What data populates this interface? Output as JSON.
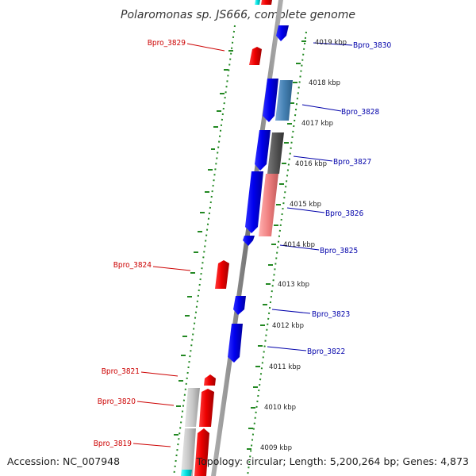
{
  "title": "Polaromonas sp. JS666, complete genome",
  "footer": {
    "accession": "Accession: NC_007948",
    "topology": "Topology: circular; Length: 5,200,264 bp; Genes: 4,873"
  },
  "scale_kbp": [
    "4019 kbp",
    "4018 kbp",
    "4017 kbp",
    "4016 kbp",
    "4015 kbp",
    "4014 kbp",
    "4013 kbp",
    "4012 kbp",
    "4011 kbp",
    "4010 kbp",
    "4009 kbp"
  ],
  "gene_labels": [
    {
      "id": "Bpro_3829",
      "color": "#cc0000"
    },
    {
      "id": "Bpro_3830",
      "color": "#0000aa"
    },
    {
      "id": "Bpro_3828",
      "color": "#0000aa"
    },
    {
      "id": "Bpro_3827",
      "color": "#0000aa"
    },
    {
      "id": "Bpro_3826",
      "color": "#0000aa"
    },
    {
      "id": "Bpro_3825",
      "color": "#0000aa"
    },
    {
      "id": "Bpro_3824",
      "color": "#cc0000"
    },
    {
      "id": "Bpro_3823",
      "color": "#0000aa"
    },
    {
      "id": "Bpro_3822",
      "color": "#0000aa"
    },
    {
      "id": "Bpro_3821",
      "color": "#cc0000"
    },
    {
      "id": "Bpro_3820",
      "color": "#cc0000"
    },
    {
      "id": "Bpro_3819",
      "color": "#cc0000"
    }
  ],
  "colors": {
    "forward_gene": "#0000ee",
    "reverse_gene": "#ee0000",
    "backbone": "#888888",
    "gc_plot": "#228822",
    "cog_cyan": "#00cccc"
  }
}
